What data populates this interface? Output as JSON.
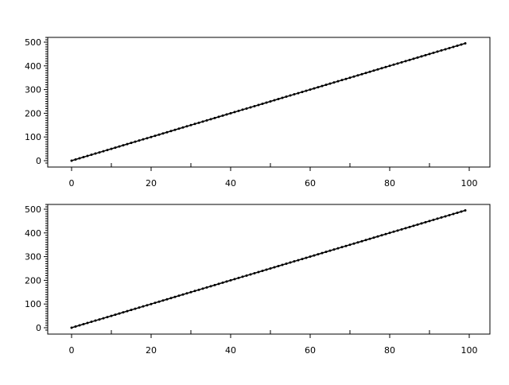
{
  "chart_data": [
    {
      "type": "line",
      "marker": "dot",
      "line_color": "#000000",
      "xlim": [
        -6,
        105
      ],
      "ylim": [
        -16,
        530
      ],
      "x_ticks": [
        0,
        20,
        40,
        60,
        80,
        100
      ],
      "x_minor_ticks": [
        10,
        30,
        50,
        70,
        90
      ],
      "y_ticks": [
        0,
        100,
        200,
        300,
        400,
        500
      ],
      "x_tick_labels": [
        "0",
        "20",
        "40",
        "60",
        "80",
        "100"
      ],
      "y_tick_labels": [
        "0",
        "100",
        "200",
        "300",
        "400",
        "500"
      ],
      "series": [
        {
          "x_start": 0,
          "x_end": 99,
          "x_step": 1,
          "y_formula": "y = 5x"
        }
      ]
    },
    {
      "type": "line",
      "marker": "dot",
      "line_color": "#000000",
      "xlim": [
        -6,
        105
      ],
      "ylim": [
        -16,
        530
      ],
      "x_ticks": [
        0,
        20,
        40,
        60,
        80,
        100
      ],
      "x_minor_ticks": [
        10,
        30,
        50,
        70,
        90
      ],
      "y_ticks": [
        0,
        100,
        200,
        300,
        400,
        500
      ],
      "x_tick_labels": [
        "0",
        "20",
        "40",
        "60",
        "80",
        "100"
      ],
      "y_tick_labels": [
        "0",
        "100",
        "200",
        "300",
        "400",
        "500"
      ],
      "series": [
        {
          "x_start": 0,
          "x_end": 99,
          "x_step": 1,
          "y_formula": "y = 5x"
        }
      ]
    }
  ]
}
